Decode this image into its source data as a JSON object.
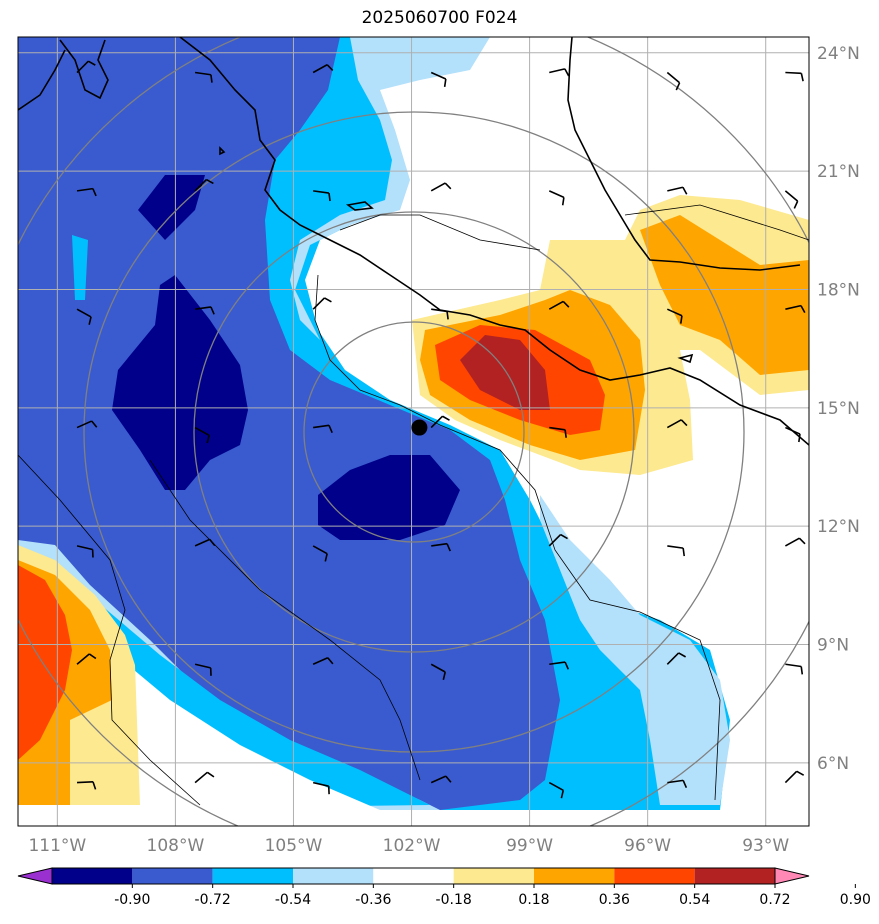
{
  "title": "2025060700 F024",
  "map": {
    "lon_range": [
      -112.0,
      -91.9
    ],
    "lat_range": [
      4.4,
      24.4
    ],
    "lat_ticks": [
      {
        "value": 24,
        "label": "24°N"
      },
      {
        "value": 21,
        "label": "21°N"
      },
      {
        "value": 18,
        "label": "18°N"
      },
      {
        "value": 15,
        "label": "15°N"
      },
      {
        "value": 12,
        "label": "12°N"
      },
      {
        "value": 9,
        "label": "9°N"
      },
      {
        "value": 6,
        "label": "6°N"
      }
    ],
    "lon_ticks": [
      {
        "value": -111,
        "label": "111°W"
      },
      {
        "value": -108,
        "label": "108°W"
      },
      {
        "value": -105,
        "label": "105°W"
      },
      {
        "value": -102,
        "label": "102°W"
      },
      {
        "value": -99,
        "label": "99°W"
      },
      {
        "value": -96,
        "label": "96°W"
      },
      {
        "value": -93,
        "label": "93°W"
      }
    ],
    "center_marker": {
      "lon": -101.8,
      "lat": 14.5
    },
    "range_rings": 4
  },
  "colorbar": {
    "levels": [
      "-0.90",
      "-0.72",
      "-0.54",
      "-0.36",
      "-0.18",
      "0.18",
      "0.36",
      "0.54",
      "0.72",
      "0.90"
    ],
    "colors": [
      "#9b30d0",
      "#00008b",
      "#3a5bcf",
      "#00bfff",
      "#b3e0fb",
      "#ffffff",
      "#fde98f",
      "#ffa500",
      "#ff4500",
      "#b22222",
      "#ff88b4"
    ]
  },
  "field_colors": {
    "dark_blue": "#00008b",
    "royal_blue": "#3a5bcf",
    "sky_blue": "#00bfff",
    "pale_blue": "#b3e0fb",
    "pale_yellow": "#fde98f",
    "orange": "#ffa500",
    "red_orange": "#ff4500",
    "dark_red": "#b22222"
  }
}
